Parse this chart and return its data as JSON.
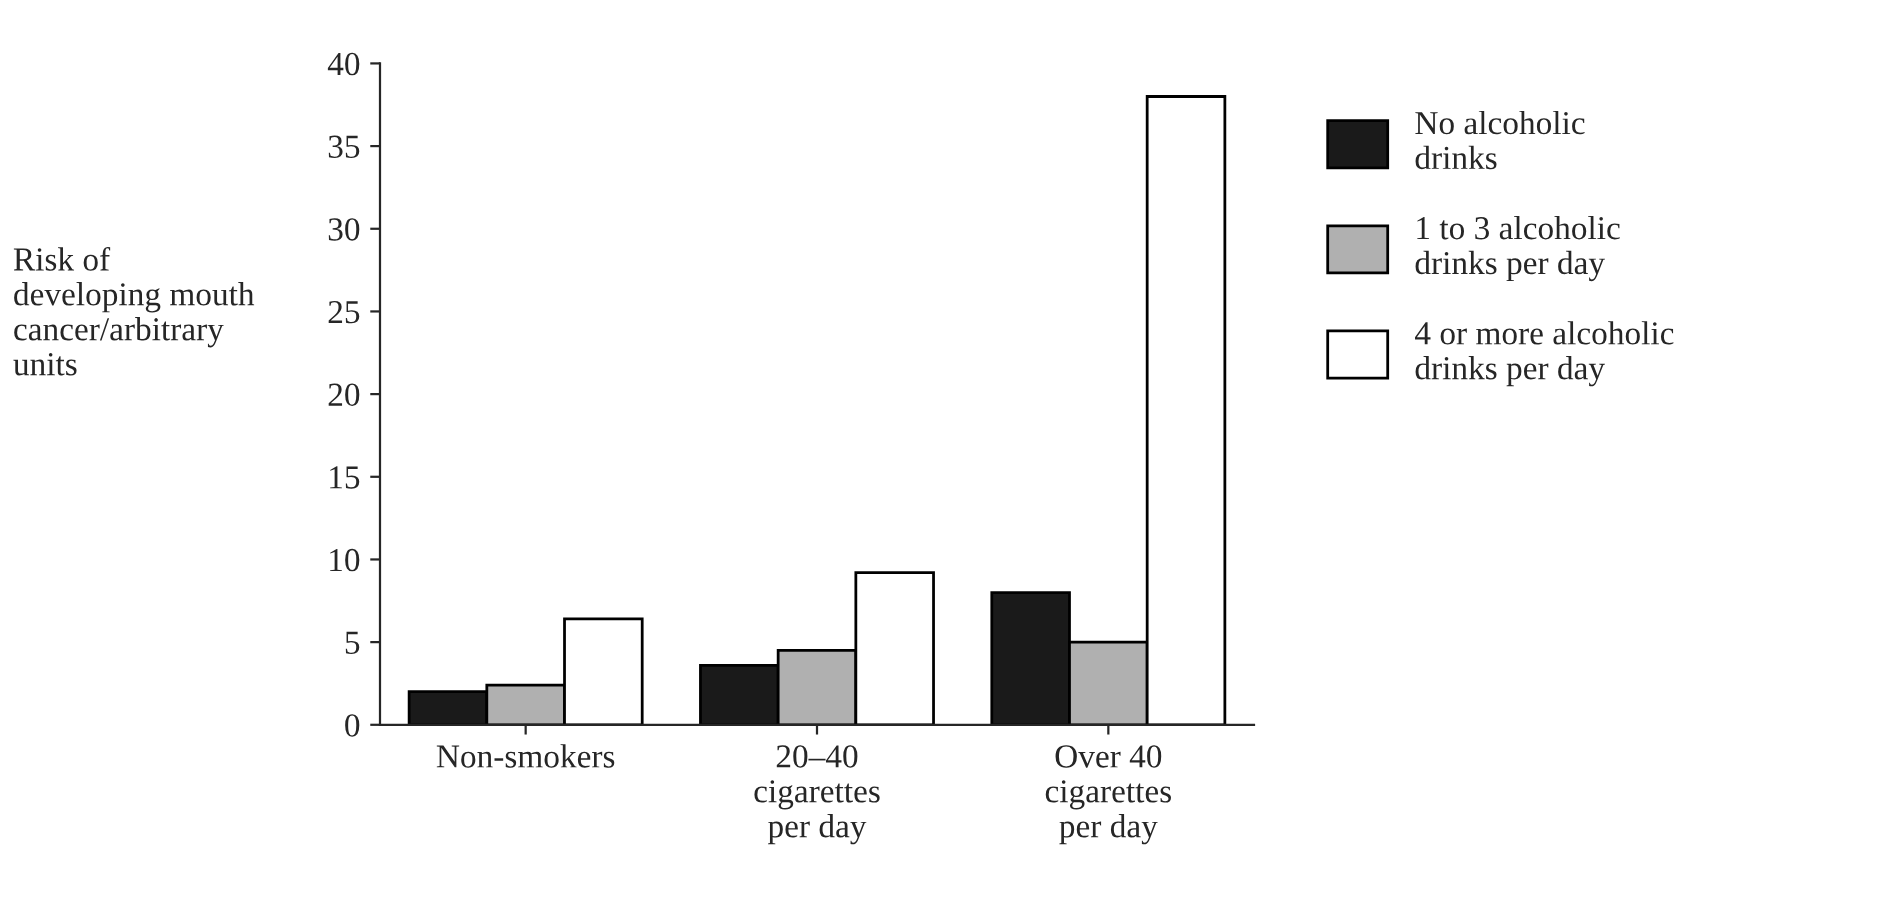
{
  "chart_data": {
    "type": "bar",
    "ylabel": "Risk of\ndeveloping mouth\ncancer/arbitrary\nunits",
    "categories": [
      "Non-smokers",
      "20–40\ncigarettes\nper day",
      "Over 40\ncigarettes\nper day"
    ],
    "series": [
      {
        "name": "No alcoholic\ndrinks",
        "color": "#1a1a1a",
        "values": [
          2,
          3.6,
          8
        ]
      },
      {
        "name": "1 to 3 alcoholic\ndrinks per day",
        "color": "#b0b0b0",
        "values": [
          2.4,
          4.5,
          5
        ]
      },
      {
        "name": "4 or more alcoholic\ndrinks per day",
        "color": "#ffffff",
        "values": [
          6.4,
          9.2,
          38
        ]
      }
    ],
    "ylim": [
      0,
      40
    ],
    "yticks": [
      0,
      5,
      10,
      15,
      20,
      25,
      30,
      35,
      40
    ],
    "grid": false,
    "legend": "right"
  }
}
